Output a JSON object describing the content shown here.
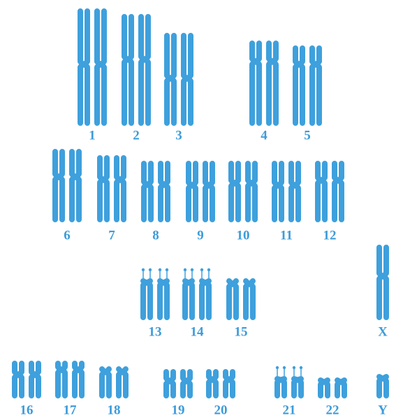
{
  "chromosomes": [
    {
      "label": "1"
    },
    {
      "label": "2"
    },
    {
      "label": "3"
    },
    {
      "label": "4"
    },
    {
      "label": "5"
    },
    {
      "label": "6"
    },
    {
      "label": "7"
    },
    {
      "label": "8"
    },
    {
      "label": "9"
    },
    {
      "label": "10"
    },
    {
      "label": "11"
    },
    {
      "label": "12"
    },
    {
      "label": "13"
    },
    {
      "label": "14"
    },
    {
      "label": "15"
    },
    {
      "label": "X"
    },
    {
      "label": "16"
    },
    {
      "label": "17"
    },
    {
      "label": "18"
    },
    {
      "label": "19"
    },
    {
      "label": "20"
    },
    {
      "label": "21"
    },
    {
      "label": "22"
    },
    {
      "label": "Y"
    }
  ]
}
